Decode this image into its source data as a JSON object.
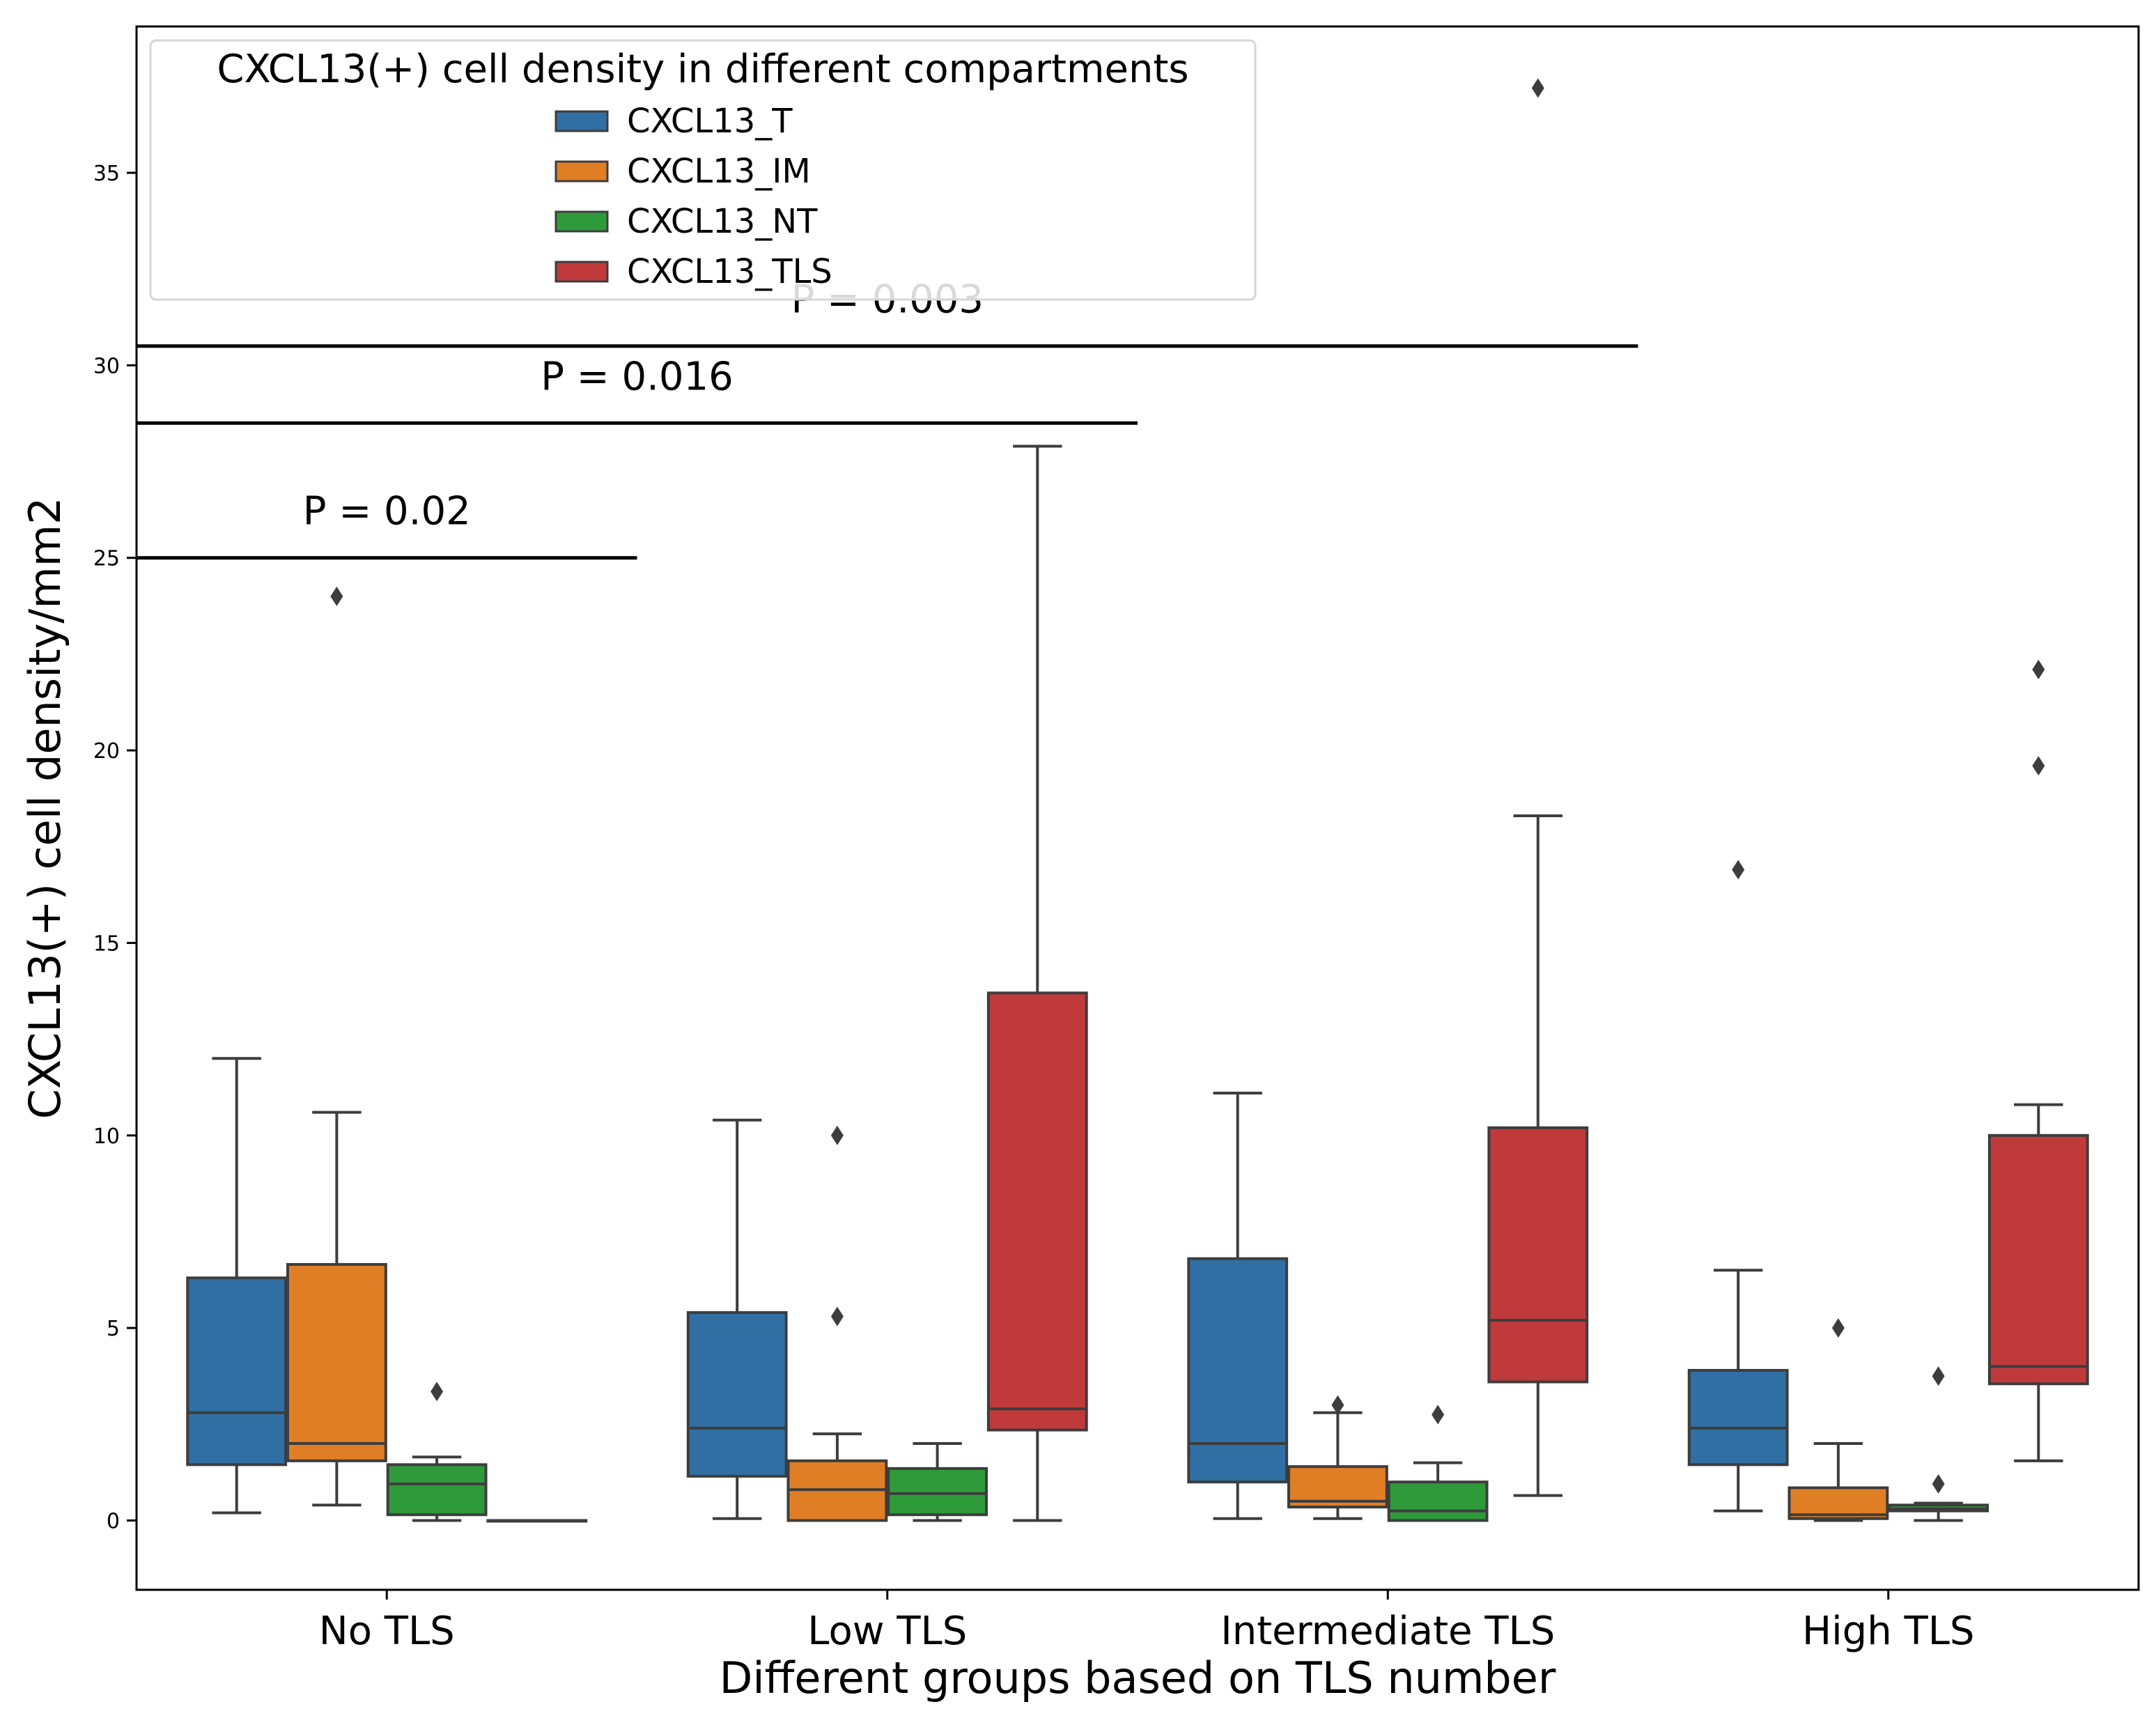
{
  "chart_data": {
    "type": "box",
    "xlabel": "Different groups based on TLS number",
    "ylabel": "CXCL13(+) cell density/mm2",
    "ylim": [
      -1.8,
      38.8
    ],
    "yticks": [
      0,
      5,
      10,
      15,
      20,
      25,
      30,
      35
    ],
    "categories": [
      "No TLS",
      "Low TLS",
      "Intermediate TLS",
      "High TLS"
    ],
    "legend": {
      "title": "CXCL13(+) cell density in different compartments",
      "position": "top-left"
    },
    "series": [
      {
        "name": "CXCL13_T",
        "color": "#2f6fa3",
        "boxes": [
          {
            "whislo": 0.2,
            "q1": 1.45,
            "med": 2.8,
            "q3": 6.3,
            "whishi": 12.0,
            "fliers": []
          },
          {
            "whislo": 0.05,
            "q1": 1.15,
            "med": 2.4,
            "q3": 5.4,
            "whishi": 10.4,
            "fliers": []
          },
          {
            "whislo": 0.05,
            "q1": 1.0,
            "med": 2.0,
            "q3": 6.8,
            "whishi": 11.1,
            "fliers": []
          },
          {
            "whislo": 0.25,
            "q1": 1.45,
            "med": 2.4,
            "q3": 3.9,
            "whishi": 6.5,
            "fliers": [
              16.9
            ]
          }
        ]
      },
      {
        "name": "CXCL13_IM",
        "color": "#e07e26",
        "boxes": [
          {
            "whislo": 0.4,
            "q1": 1.55,
            "med": 2.0,
            "q3": 6.65,
            "whishi": 10.6,
            "fliers": [
              24.0
            ]
          },
          {
            "whislo": 0.0,
            "q1": 0.0,
            "med": 0.8,
            "q3": 1.55,
            "whishi": 2.25,
            "fliers": [
              5.3,
              10.0
            ]
          },
          {
            "whislo": 0.05,
            "q1": 0.35,
            "med": 0.5,
            "q3": 1.4,
            "whishi": 2.8,
            "fliers": [
              3.0
            ]
          },
          {
            "whislo": 0.0,
            "q1": 0.05,
            "med": 0.15,
            "q3": 0.85,
            "whishi": 2.0,
            "fliers": [
              5.0
            ]
          }
        ]
      },
      {
        "name": "CXCL13_NT",
        "color": "#2f9a3a",
        "boxes": [
          {
            "whislo": 0.0,
            "q1": 0.15,
            "med": 0.95,
            "q3": 1.45,
            "whishi": 1.65,
            "fliers": [
              3.35
            ]
          },
          {
            "whislo": 0.0,
            "q1": 0.15,
            "med": 0.7,
            "q3": 1.35,
            "whishi": 2.0,
            "fliers": []
          },
          {
            "whislo": 0.0,
            "q1": 0.0,
            "med": 0.25,
            "q3": 1.0,
            "whishi": 1.5,
            "fliers": [
              2.75
            ]
          },
          {
            "whislo": 0.0,
            "q1": 0.25,
            "med": 0.3,
            "q3": 0.4,
            "whishi": 0.45,
            "fliers": [
              0.95,
              3.75
            ]
          }
        ]
      },
      {
        "name": "CXCL13_TLS",
        "color": "#c03a3c",
        "boxes": [
          {
            "whislo": 0.0,
            "q1": 0.0,
            "med": 0.0,
            "q3": 0.0,
            "whishi": 0.0,
            "fliers": []
          },
          {
            "whislo": 0.0,
            "q1": 2.35,
            "med": 2.9,
            "q3": 13.7,
            "whishi": 27.9,
            "fliers": []
          },
          {
            "whislo": 0.65,
            "q1": 3.6,
            "med": 5.2,
            "q3": 10.2,
            "whishi": 18.3,
            "fliers": [
              37.2
            ]
          },
          {
            "whislo": 1.55,
            "q1": 3.55,
            "med": 4.0,
            "q3": 10.0,
            "whishi": 10.8,
            "fliers": [
              19.6,
              22.1
            ]
          }
        ]
      }
    ],
    "annotations": [
      {
        "text": "P = 0.02",
        "x_from": -0.5,
        "x_to": 0.5,
        "y": 25.0
      },
      {
        "text": "P = 0.016",
        "x_from": -0.5,
        "x_to": 1.5,
        "y": 28.5
      },
      {
        "text": "P = 0.003",
        "x_from": -0.5,
        "x_to": 2.5,
        "y": 30.5
      }
    ]
  }
}
